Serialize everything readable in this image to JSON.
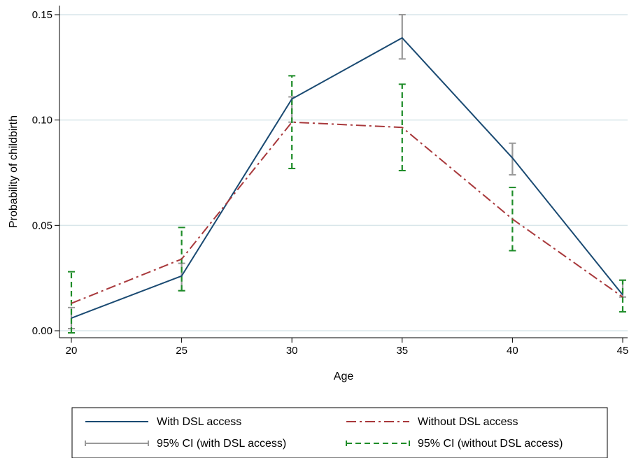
{
  "chart_data": {
    "type": "line",
    "title": "",
    "xlabel": "Age",
    "ylabel": "Probability of childbirth",
    "x": [
      20,
      25,
      30,
      35,
      40,
      45
    ],
    "x_ticks": [
      "20",
      "25",
      "30",
      "35",
      "40",
      "45"
    ],
    "y_ticks": [
      "0.00",
      "0.05",
      "0.10",
      "0.15"
    ],
    "xlim": [
      20,
      45
    ],
    "ylim": [
      0,
      0.15
    ],
    "grid": "horizontal",
    "legend_position": "bottom",
    "series": [
      {
        "name": "With DSL access",
        "style": "solid",
        "color": "#1a4a72",
        "values": [
          0.006,
          0.026,
          0.11,
          0.139,
          0.082,
          0.017
        ]
      },
      {
        "name": "Without DSL access",
        "style": "dash-dot",
        "color": "#a8383b",
        "values": [
          0.013,
          0.034,
          0.099,
          0.0965,
          0.053,
          0.016
        ]
      }
    ],
    "confidence_intervals": [
      {
        "name": "95% CI (with DSL access)",
        "style": "solid",
        "color": "#999999",
        "lower": [
          0.001,
          0.019,
          0.099,
          0.129,
          0.074,
          0.016
        ],
        "upper": [
          0.011,
          0.032,
          0.111,
          0.15,
          0.089,
          0.024
        ]
      },
      {
        "name": "95% CI (without DSL access)",
        "style": "dashed",
        "color": "#1e8c28",
        "lower": [
          -0.001,
          0.019,
          0.077,
          0.076,
          0.038,
          0.009
        ],
        "upper": [
          0.028,
          0.049,
          0.121,
          0.117,
          0.068,
          0.024
        ]
      }
    ]
  }
}
